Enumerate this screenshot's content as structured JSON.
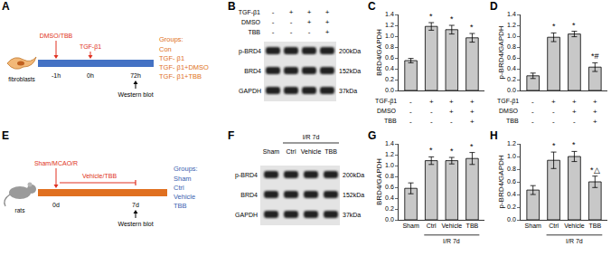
{
  "chart_data": [
    {
      "letter": "C",
      "type": "bar",
      "y_label": "BRD4/GAPDH",
      "categories": [
        null,
        null,
        null,
        null
      ],
      "values": [
        0.55,
        1.18,
        1.12,
        0.97
      ],
      "errors": [
        0.04,
        0.07,
        0.08,
        0.08
      ],
      "significance": [
        null,
        "*",
        "*",
        "*"
      ],
      "treatment_rows": [
        {
          "name": "TGF-β1",
          "signs": [
            "-",
            "+",
            "+",
            "+"
          ]
        },
        {
          "name": "DMSO",
          "signs": [
            "-",
            "-",
            "+",
            "+"
          ]
        },
        {
          "name": "TBB",
          "signs": [
            "-",
            "-",
            "-",
            "+"
          ]
        }
      ],
      "color": "#c8c8c8",
      "ylim": [
        0,
        1.4
      ],
      "yticks": [
        {
          "value": 0,
          "label": "0.0"
        },
        0.2,
        0.4,
        0.6,
        0.8,
        {
          "value": 1,
          "label": "1.0"
        },
        1.2,
        1.4
      ],
      "grid": false
    },
    {
      "letter": "D",
      "type": "bar",
      "y_label": "p-BRD4/GAPDH",
      "categories": [
        null,
        null,
        null,
        null
      ],
      "values": [
        0.27,
        0.98,
        1.04,
        0.43
      ],
      "errors": [
        0.05,
        0.08,
        0.05,
        0.08
      ],
      "significance": [
        null,
        "*",
        "*",
        "*#"
      ],
      "treatment_rows": [
        {
          "name": "TGF-β1",
          "signs": [
            "-",
            "+",
            "+",
            "+"
          ]
        },
        {
          "name": "DMSO",
          "signs": [
            "-",
            "-",
            "+",
            "+"
          ]
        },
        {
          "name": "TBB",
          "signs": [
            "-",
            "-",
            "-",
            "+"
          ]
        }
      ],
      "color": "#c8c8c8",
      "ylim": [
        0,
        1.4
      ],
      "yticks": [
        {
          "value": 0,
          "label": "0.0"
        },
        0.2,
        0.4,
        0.6,
        0.8,
        {
          "value": 1,
          "label": "1.0"
        },
        1.2,
        1.4
      ],
      "grid": false
    },
    {
      "letter": "G",
      "type": "bar",
      "y_label": "BRD4/GAPDH",
      "categories": [
        "Sham",
        "Ctrl",
        "Vehicle",
        "TBB"
      ],
      "values": [
        0.58,
        1.09,
        1.09,
        1.13
      ],
      "errors": [
        0.1,
        0.07,
        0.06,
        0.11
      ],
      "significance": [
        null,
        "*",
        "*",
        "*"
      ],
      "group_label": {
        "text": "I/R 7d",
        "first": 1,
        "last": 3
      },
      "color": "#c8c8c8",
      "ylim": [
        0,
        1.4
      ],
      "yticks": [
        {
          "value": 0,
          "label": "0.0"
        },
        0.2,
        0.4,
        0.6,
        0.8,
        {
          "value": 1,
          "label": "1.0"
        },
        1.2,
        1.4
      ],
      "grid": false
    },
    {
      "letter": "H",
      "type": "bar",
      "y_label": "p-BRD4/GAPDH",
      "categories": [
        "Sham",
        "Ctrl",
        "Vehicle",
        "TBB"
      ],
      "values": [
        0.47,
        0.94,
        1.0,
        0.6
      ],
      "errors": [
        0.07,
        0.13,
        0.08,
        0.09
      ],
      "significance": [
        null,
        "*",
        "*",
        "*△"
      ],
      "group_label": {
        "text": "I/R 7d",
        "first": 1,
        "last": 3
      },
      "color": "#c8c8c8",
      "ylim": [
        0,
        1.2
      ],
      "yticks": [
        {
          "value": 0,
          "label": "0.0"
        },
        0.2,
        0.4,
        0.6,
        0.8,
        {
          "value": 1,
          "label": "1.0"
        },
        1.2
      ],
      "grid": false
    }
  ],
  "panels": {
    "A": {
      "letter": "A",
      "cell": "fibroblasts",
      "pretreat": "DMSO/TBB",
      "treat": "TGF-β1",
      "times": [
        "-1h",
        "0h",
        "72h"
      ],
      "assay": "Western blot",
      "groups_title": "Groups:",
      "groups": [
        "Con",
        "TGF- β1",
        "TGF- β1+DMSO",
        "TGF- β1+TBB"
      ]
    },
    "B": {
      "letter": "B",
      "treatment_rows": [
        {
          "name": "TGF-β1",
          "signs": [
            "-",
            "+",
            "+",
            "+"
          ]
        },
        {
          "name": "DMSO",
          "signs": [
            "-",
            "-",
            "+",
            "+"
          ]
        },
        {
          "name": "TBB",
          "signs": [
            "-",
            "-",
            "-",
            "+"
          ]
        }
      ],
      "bands": [
        {
          "name": "p-BRD4",
          "size": "200kDa"
        },
        {
          "name": "BRD4",
          "size": "152kDa"
        },
        {
          "name": "GAPDH",
          "size": "37kDa"
        }
      ]
    },
    "E": {
      "letter": "E",
      "animal": "rats",
      "surgery": "Sham/MCAO/R",
      "treat": "Vehicle/TBB",
      "times": [
        "0d",
        "7d"
      ],
      "assay": "Western blot",
      "groups_title": "Groups:",
      "groups": [
        "Sham",
        "Ctrl",
        "Vehicle",
        "TBB"
      ]
    },
    "F": {
      "letter": "F",
      "group_label": {
        "text": "I/R 7d",
        "first": 1,
        "last": 3
      },
      "lanes": [
        "Sham",
        "Ctrl",
        "Vehicle",
        "TBB"
      ],
      "bands": [
        {
          "name": "p-BRD4",
          "size": "200kDa"
        },
        {
          "name": "BRD4",
          "size": "152kDa"
        },
        {
          "name": "GAPDH",
          "size": "37kDa"
        }
      ]
    }
  }
}
